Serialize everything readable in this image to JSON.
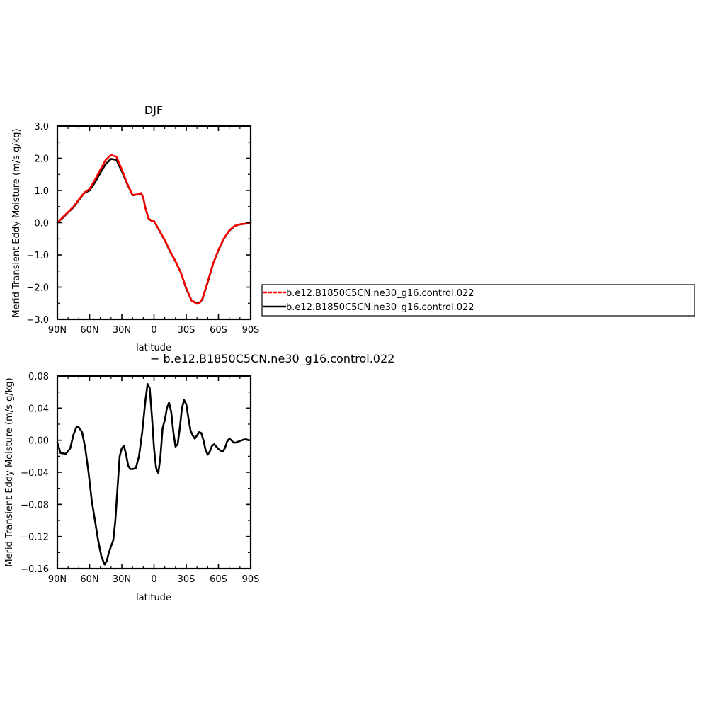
{
  "chart_data": [
    {
      "type": "line",
      "title": "DJF",
      "xlabel": "latitude",
      "ylabel": "Merid Transient Eddy Moisture (m/s g/kg)",
      "xlim": [
        -90,
        90
      ],
      "ylim": [
        -3.0,
        3.0
      ],
      "x_ticks": [
        {
          "value": -90,
          "label": "90N"
        },
        {
          "value": -60,
          "label": "60N"
        },
        {
          "value": -30,
          "label": "30N"
        },
        {
          "value": 0,
          "label": "0"
        },
        {
          "value": 30,
          "label": "30S"
        },
        {
          "value": 60,
          "label": "60S"
        },
        {
          "value": 90,
          "label": "90S"
        }
      ],
      "y_ticks": [
        {
          "value": 3.0,
          "label": "3.0"
        },
        {
          "value": 2.0,
          "label": "2.0"
        },
        {
          "value": 1.0,
          "label": "1.0"
        },
        {
          "value": 0.0,
          "label": "0.0"
        },
        {
          "value": -1.0,
          "label": "−1.0"
        },
        {
          "value": -2.0,
          "label": "−2.0"
        },
        {
          "value": -3.0,
          "label": "−3.0"
        }
      ],
      "grid": false,
      "legend": {
        "placement": "right",
        "entries": [
          {
            "label": "b.e12.B1850C5CN.ne30_g16.control.022",
            "color": "#ff0000",
            "dash": "dashed"
          },
          {
            "label": "b.e12.B1850C5CN.ne30_g16.control.022",
            "color": "#000000",
            "dash": "solid"
          }
        ]
      },
      "series": [
        {
          "name": "b.e12.B1850C5CN.ne30_g16.control.022",
          "color": "#000000",
          "x": [
            -90,
            -85,
            -80,
            -75,
            -70,
            -65,
            -60,
            -55,
            -50,
            -45,
            -40,
            -35,
            -30,
            -25,
            -20,
            -15,
            -12,
            -10,
            -8,
            -5,
            -2,
            0,
            5,
            10,
            15,
            20,
            25,
            30,
            35,
            40,
            42,
            45,
            50,
            55,
            60,
            65,
            70,
            75,
            80,
            85,
            90
          ],
          "y": [
            0.0,
            0.15,
            0.32,
            0.48,
            0.7,
            0.92,
            1.0,
            1.25,
            1.55,
            1.82,
            1.98,
            1.95,
            1.6,
            1.2,
            0.85,
            0.88,
            0.9,
            0.78,
            0.45,
            0.12,
            0.05,
            0.05,
            -0.25,
            -0.55,
            -0.9,
            -1.2,
            -1.55,
            -2.05,
            -2.42,
            -2.5,
            -2.5,
            -2.38,
            -1.85,
            -1.28,
            -0.85,
            -0.5,
            -0.25,
            -0.1,
            -0.05,
            -0.03,
            0.0
          ]
        },
        {
          "name": "b.e12.B1850C5CN.ne30_g16.control.022",
          "color": "#ff0000",
          "x": [
            -90,
            -85,
            -80,
            -75,
            -70,
            -65,
            -60,
            -55,
            -50,
            -45,
            -40,
            -35,
            -30,
            -25,
            -20,
            -15,
            -12,
            -10,
            -8,
            -5,
            -2,
            0,
            5,
            10,
            15,
            20,
            25,
            30,
            35,
            40,
            42,
            45,
            50,
            55,
            60,
            65,
            70,
            75,
            80,
            85,
            90
          ],
          "y": [
            0.0,
            0.17,
            0.33,
            0.5,
            0.72,
            0.93,
            1.05,
            1.33,
            1.65,
            1.95,
            2.1,
            2.05,
            1.65,
            1.22,
            0.86,
            0.88,
            0.92,
            0.78,
            0.45,
            0.13,
            0.06,
            0.05,
            -0.24,
            -0.54,
            -0.88,
            -1.2,
            -1.55,
            -2.03,
            -2.42,
            -2.52,
            -2.5,
            -2.36,
            -1.83,
            -1.27,
            -0.84,
            -0.49,
            -0.24,
            -0.1,
            -0.05,
            -0.03,
            0.0
          ]
        }
      ]
    },
    {
      "type": "line",
      "title": "− b.e12.B1850C5CN.ne30_g16.control.022",
      "xlabel": "latitude",
      "ylabel": "Merid Transient Eddy Moisture (m/s g/kg)",
      "xlim": [
        -90,
        90
      ],
      "ylim": [
        -0.16,
        0.08
      ],
      "x_ticks": [
        {
          "value": -90,
          "label": "90N"
        },
        {
          "value": -60,
          "label": "60N"
        },
        {
          "value": -30,
          "label": "30N"
        },
        {
          "value": 0,
          "label": "0"
        },
        {
          "value": 30,
          "label": "30S"
        },
        {
          "value": 60,
          "label": "60S"
        },
        {
          "value": 90,
          "label": "90S"
        }
      ],
      "y_ticks": [
        {
          "value": 0.08,
          "label": "0.08"
        },
        {
          "value": 0.04,
          "label": "0.04"
        },
        {
          "value": 0.0,
          "label": "0.00"
        },
        {
          "value": -0.04,
          "label": "−0.04"
        },
        {
          "value": -0.08,
          "label": "−0.08"
        },
        {
          "value": -0.12,
          "label": "−0.12"
        },
        {
          "value": -0.16,
          "label": "−0.16"
        }
      ],
      "grid": false,
      "series": [
        {
          "color": "#000000",
          "x": [
            -90,
            -87,
            -82,
            -78,
            -75,
            -72,
            -70,
            -67,
            -64,
            -61,
            -58,
            -55,
            -52,
            -49,
            -46,
            -44,
            -42,
            -40,
            -38,
            -36,
            -34,
            -32,
            -30,
            -28,
            -26,
            -24,
            -22,
            -20,
            -17,
            -14,
            -11,
            -8,
            -6,
            -4,
            -2,
            0,
            2,
            4,
            6,
            8,
            10,
            12,
            14,
            16,
            18,
            20,
            22,
            24,
            26,
            28,
            30,
            32,
            34,
            36,
            38,
            40,
            42,
            44,
            46,
            48,
            50,
            52,
            54,
            56,
            58,
            60,
            62,
            64,
            66,
            68,
            70,
            72,
            74,
            76,
            78,
            80,
            82,
            84,
            86,
            88,
            90
          ],
          "y": [
            -0.003,
            -0.016,
            -0.017,
            -0.01,
            0.007,
            0.017,
            0.016,
            0.01,
            -0.01,
            -0.04,
            -0.075,
            -0.1,
            -0.125,
            -0.145,
            -0.155,
            -0.15,
            -0.14,
            -0.132,
            -0.125,
            -0.1,
            -0.06,
            -0.02,
            -0.01,
            -0.007,
            -0.018,
            -0.032,
            -0.036,
            -0.036,
            -0.035,
            -0.02,
            0.01,
            0.05,
            0.07,
            0.065,
            0.03,
            -0.01,
            -0.035,
            -0.041,
            -0.02,
            0.015,
            0.025,
            0.04,
            0.047,
            0.035,
            0.01,
            -0.008,
            -0.005,
            0.015,
            0.04,
            0.05,
            0.045,
            0.028,
            0.012,
            0.006,
            0.002,
            0.006,
            0.01,
            0.009,
            0.0,
            -0.012,
            -0.018,
            -0.014,
            -0.007,
            -0.005,
            -0.008,
            -0.011,
            -0.013,
            -0.014,
            -0.01,
            -0.002,
            0.002,
            0.0,
            -0.003,
            -0.003,
            -0.002,
            -0.001,
            0.0,
            0.001,
            0.001,
            0.0,
            0.0
          ]
        }
      ]
    }
  ]
}
